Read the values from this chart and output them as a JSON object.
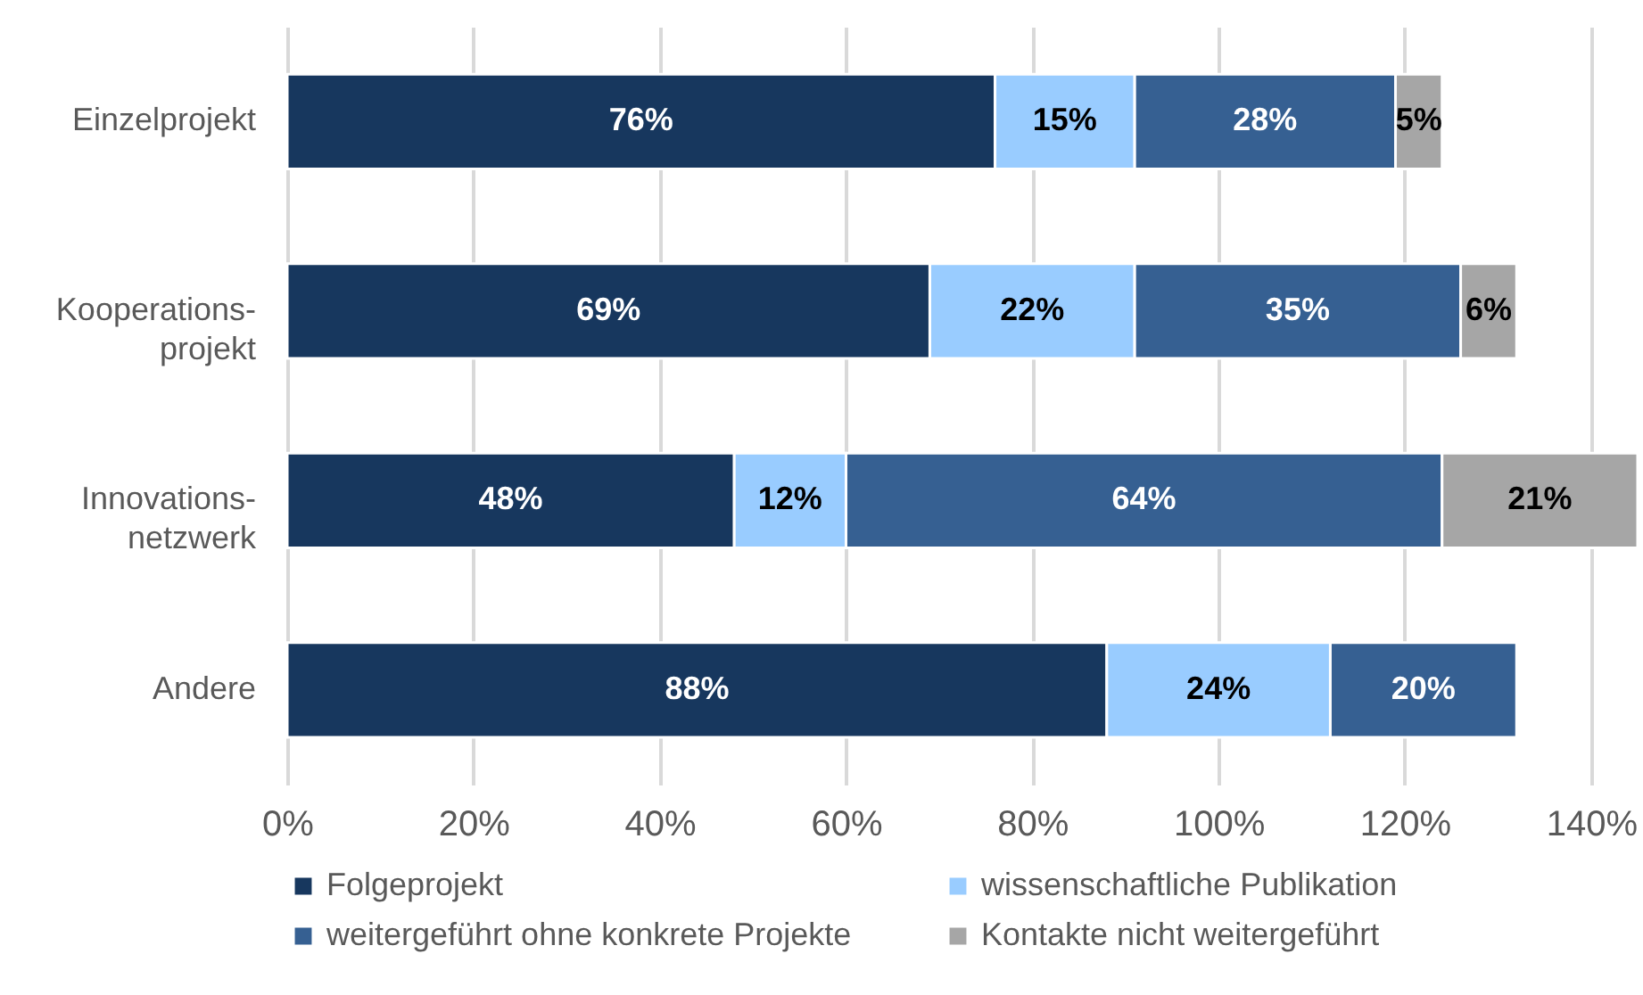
{
  "chart_data": {
    "type": "bar",
    "orientation": "horizontal",
    "stacked": true,
    "categories": [
      "Einzelprojekt",
      "Kooperations-\nprojekt",
      "Innovations-\nnetzwerk",
      "Andere"
    ],
    "series": [
      {
        "name": "Folgeprojekt",
        "color": "#17375e",
        "values": [
          76,
          69,
          48,
          88
        ],
        "value_labels": [
          "76%",
          "69%",
          "48%",
          "88%"
        ]
      },
      {
        "name": "wissenschaftliche Publikation",
        "color": "#99ccff",
        "values": [
          15,
          22,
          12,
          24
        ],
        "value_labels": [
          "15%",
          "22%",
          "12%",
          "24%"
        ]
      },
      {
        "name": "weitergeführt ohne konkrete Projekte",
        "color": "#366092",
        "values": [
          28,
          35,
          64,
          20
        ],
        "value_labels": [
          "28%",
          "35%",
          "64%",
          "20%"
        ]
      },
      {
        "name": "Kontakte nicht weitergeführt",
        "color": "#a6a6a6",
        "values": [
          5,
          6,
          21,
          null
        ],
        "value_labels": [
          "5%",
          "6%",
          "21%",
          null
        ]
      }
    ],
    "xlim": [
      0,
      145
    ],
    "xticks": [
      {
        "value": 0,
        "label": "0%"
      },
      {
        "value": 20,
        "label": "20%"
      },
      {
        "value": 40,
        "label": "40%"
      },
      {
        "value": 60,
        "label": "60%"
      },
      {
        "value": 80,
        "label": "80%"
      },
      {
        "value": 100,
        "label": "100%"
      },
      {
        "value": 120,
        "label": "120%"
      },
      {
        "value": 140,
        "label": "140%"
      }
    ],
    "grid": "x",
    "legend": "bottom"
  }
}
